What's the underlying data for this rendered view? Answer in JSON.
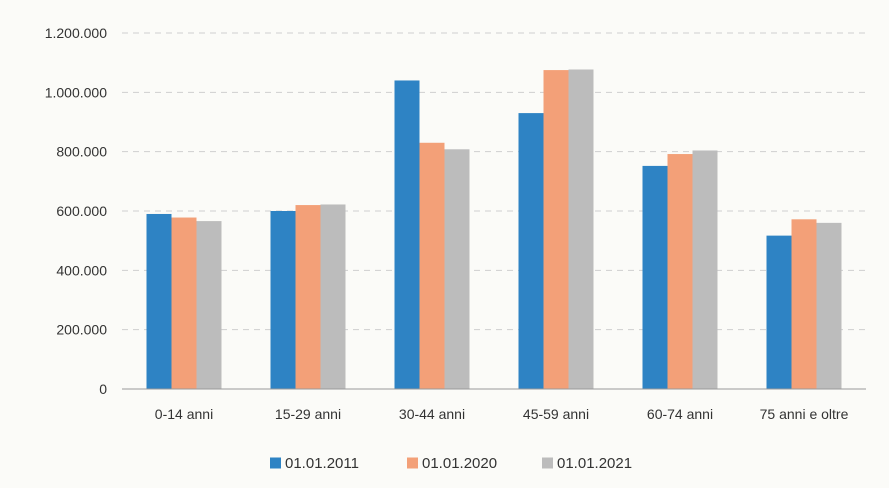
{
  "chart_data": {
    "type": "bar",
    "title": "",
    "xlabel": "",
    "ylabel": "",
    "categories": [
      "0-14 anni",
      "15-29 anni",
      "30-44 anni",
      "45-59 anni",
      "60-74 anni",
      "75 anni e oltre"
    ],
    "series": [
      {
        "name": "01.01.2011",
        "color": "#2e83c4",
        "values": [
          590000,
          600000,
          1040000,
          930000,
          752000,
          517000
        ]
      },
      {
        "name": "01.01.2020",
        "color": "#f3a078",
        "values": [
          578000,
          620000,
          830000,
          1075000,
          792000,
          572000
        ]
      },
      {
        "name": "01.01.2021",
        "color": "#bcbcbc",
        "values": [
          566000,
          622000,
          808000,
          1077000,
          804000,
          560000
        ]
      }
    ],
    "ylim": [
      0,
      1200000
    ],
    "yticks": [
      0,
      200000,
      400000,
      600000,
      800000,
      1000000,
      1200000
    ],
    "ytick_labels": [
      "0",
      "200.000",
      "400.000",
      "600.000",
      "800.000",
      "1.000.000",
      "1.200.000"
    ],
    "grid": true,
    "legend_position": "bottom"
  }
}
